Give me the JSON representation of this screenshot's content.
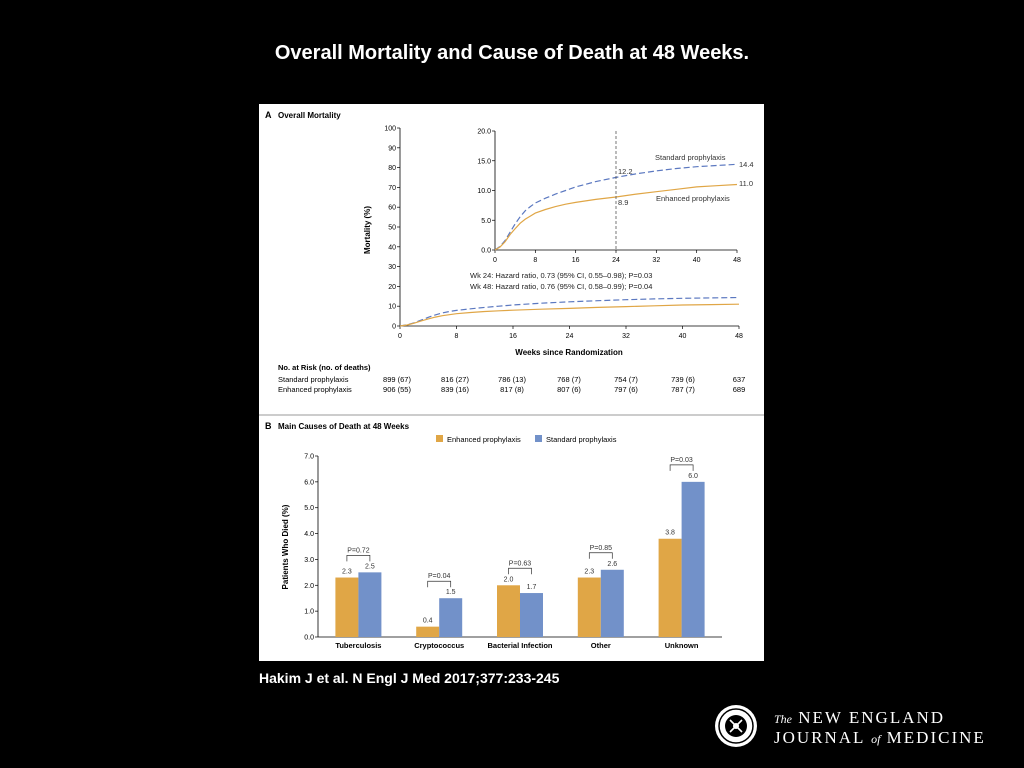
{
  "slide": {
    "title": "Overall Mortality and Cause of Death at 48 Weeks.",
    "citation": "Hakim J et al. N Engl J Med 2017;377:233-245",
    "logo": {
      "prefix": "The",
      "line1": "NEW ENGLAND",
      "line2a": "JOURNAL",
      "line2b": "of",
      "line2c": "MEDICINE"
    }
  },
  "colors": {
    "enhanced": "#e0a646",
    "standard": "#7291c9",
    "standard_line": "#5b78c0",
    "background": "#000000"
  },
  "chart_data": [
    {
      "type": "line",
      "panel_letter": "A",
      "title": "Overall Mortality",
      "xlabel": "Weeks since Randomization",
      "ylabel": "Mortality (%)",
      "xlim": [
        0,
        48
      ],
      "ylim": [
        0,
        100
      ],
      "xticks": [
        0,
        8,
        16,
        24,
        32,
        40,
        48
      ],
      "yticks": [
        0,
        10,
        20,
        30,
        40,
        50,
        60,
        70,
        80,
        90,
        100
      ],
      "inset": {
        "xlim": [
          0,
          48
        ],
        "ylim": [
          0,
          20
        ],
        "xticks": [
          0,
          8,
          16,
          24,
          32,
          40,
          48
        ],
        "yticks": [
          "0.0",
          "5.0",
          "10.0",
          "15.0",
          "20.0"
        ],
        "marker_week": 24,
        "annotations": {
          "standard_wk24": "12.2",
          "enhanced_wk24": "8.9",
          "standard_wk48": "14.4",
          "enhanced_wk48": "11.0"
        },
        "standard_label": "Standard prophylaxis",
        "enhanced_label": "Enhanced prophylaxis",
        "hr_wk24": "Wk 24: Hazard ratio, 0.73 (95% CI, 0.55–0.98); P=0.03",
        "hr_wk48": "Wk 48: Hazard ratio, 0.76 (95% CI, 0.58–0.99); P=0.04"
      },
      "series": [
        {
          "name": "Standard prophylaxis",
          "style": "dashed",
          "x": [
            0,
            1,
            2,
            3,
            4,
            5,
            6,
            7,
            8,
            10,
            12,
            14,
            16,
            20,
            24,
            28,
            32,
            36,
            40,
            44,
            48
          ],
          "y": [
            0,
            0.6,
            1.6,
            3.0,
            4.4,
            5.6,
            6.6,
            7.3,
            7.9,
            8.7,
            9.4,
            10.0,
            10.6,
            11.5,
            12.2,
            12.8,
            13.3,
            13.7,
            14.0,
            14.2,
            14.4
          ]
        },
        {
          "name": "Enhanced prophylaxis",
          "style": "solid",
          "x": [
            0,
            1,
            2,
            3,
            4,
            5,
            6,
            7,
            8,
            10,
            12,
            14,
            16,
            20,
            24,
            28,
            32,
            36,
            40,
            44,
            48
          ],
          "y": [
            0,
            0.5,
            1.4,
            2.6,
            3.6,
            4.5,
            5.2,
            5.7,
            6.2,
            6.8,
            7.3,
            7.7,
            8.0,
            8.5,
            8.9,
            9.4,
            9.8,
            10.2,
            10.6,
            10.8,
            11.0
          ]
        }
      ],
      "at_risk": {
        "heading": "No. at Risk (no. of deaths)",
        "rows": [
          {
            "label": "Standard prophylaxis",
            "values": [
              "899 (67)",
              "816 (27)",
              "786 (13)",
              "768 (7)",
              "754 (7)",
              "739 (6)",
              "637"
            ]
          },
          {
            "label": "Enhanced prophylaxis",
            "values": [
              "906 (55)",
              "839 (16)",
              "817 (8)",
              "807 (6)",
              "797 (6)",
              "787 (7)",
              "689"
            ]
          }
        ]
      }
    },
    {
      "type": "bar",
      "panel_letter": "B",
      "title": "Main Causes of Death at 48 Weeks",
      "ylabel": "Patients Who Died (%)",
      "ylim": [
        0,
        7
      ],
      "yticks": [
        "0.0",
        "1.0",
        "2.0",
        "3.0",
        "4.0",
        "5.0",
        "6.0",
        "7.0"
      ],
      "categories": [
        "Tuberculosis",
        "Cryptococcus",
        "Bacterial Infection",
        "Other",
        "Unknown"
      ],
      "series": [
        {
          "name": "Enhanced prophylaxis",
          "values": [
            2.3,
            0.4,
            2.0,
            2.3,
            3.8
          ],
          "labels": [
            "2.3",
            "0.4",
            "2.0",
            "2.3",
            "3.8"
          ]
        },
        {
          "name": "Standard prophylaxis",
          "values": [
            2.5,
            1.5,
            1.7,
            2.6,
            6.0
          ],
          "labels": [
            "2.5",
            "1.5",
            "1.7",
            "2.6",
            "6.0"
          ]
        }
      ],
      "p_values": [
        "P=0.72",
        "P=0.04",
        "P=0.63",
        "P=0.85",
        "P=0.03"
      ],
      "legend": [
        "Enhanced prophylaxis",
        "Standard prophylaxis"
      ]
    }
  ]
}
